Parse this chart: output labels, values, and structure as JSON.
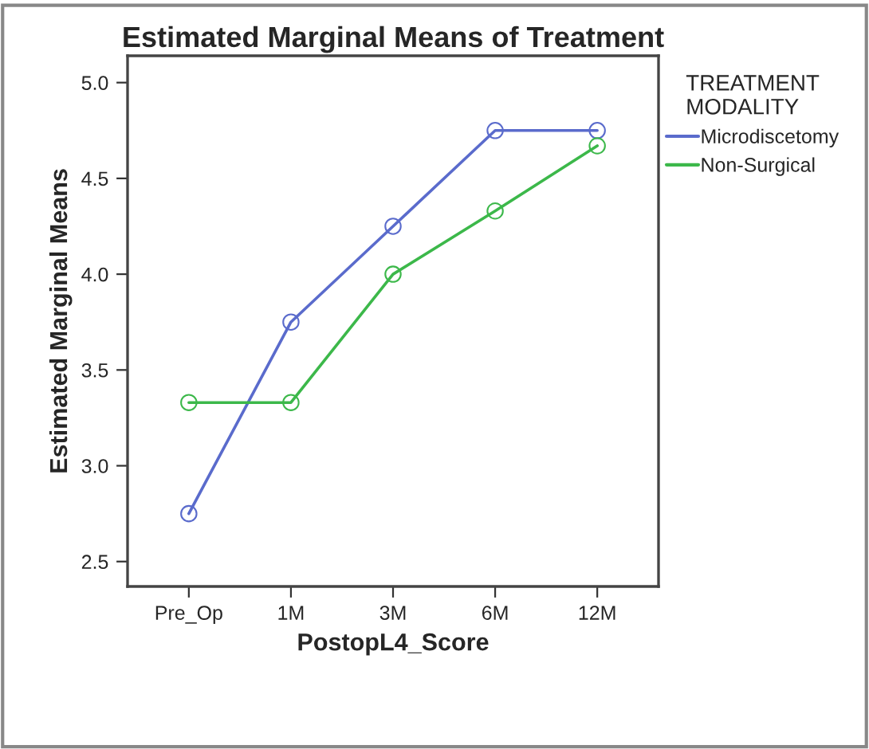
{
  "chart_data": {
    "type": "line",
    "title": "Estimated Marginal Means of Treatment",
    "xlabel": "PostopL4_Score",
    "ylabel": "Estimated Marginal Means",
    "legend_title": "TREATMENT\nMODALITY",
    "categories": [
      "Pre_Op",
      "1M",
      "3M",
      "6M",
      "12M"
    ],
    "series": [
      {
        "name": "Microdiscetomy",
        "color": "#5a6bcc",
        "values": [
          2.75,
          3.75,
          4.25,
          4.75,
          4.75
        ]
      },
      {
        "name": "Non-Surgical",
        "color": "#3cb84a",
        "values": [
          3.33,
          3.33,
          4.0,
          4.33,
          4.67
        ]
      }
    ],
    "ylim": [
      2.37,
      5.14
    ],
    "yticks": [
      {
        "value": 2.5,
        "label": "2.5"
      },
      {
        "value": 3.0,
        "label": "3.0"
      },
      {
        "value": 3.5,
        "label": "3.5"
      },
      {
        "value": 4.0,
        "label": "4.0"
      },
      {
        "value": 4.5,
        "label": "4.5"
      },
      {
        "value": 5.0,
        "label": "5.0"
      }
    ],
    "grid": false,
    "legend": "top right",
    "marker": "circle",
    "line_style": "solid"
  }
}
